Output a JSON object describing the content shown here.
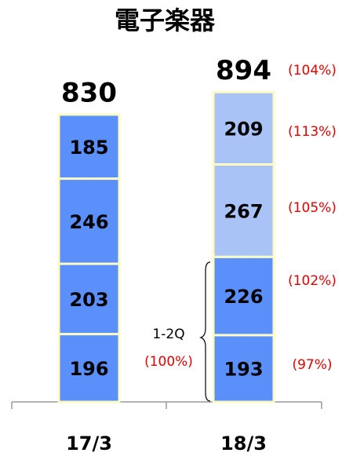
{
  "chart_data": {
    "type": "stacked_bar",
    "title": "電子楽器",
    "categories": [
      "17/3",
      "18/3"
    ],
    "series": [
      {
        "values": [
          196,
          193
        ],
        "colors": [
          "#5b8ff9",
          "#5b8ff9"
        ]
      },
      {
        "values": [
          203,
          226
        ],
        "colors": [
          "#5b8ff9",
          "#5b8ff9"
        ]
      },
      {
        "values": [
          246,
          267
        ],
        "colors": [
          "#5b8ff9",
          "#a9c3f7"
        ]
      },
      {
        "values": [
          185,
          209
        ],
        "colors": [
          "#5b8ff9",
          "#a9c3f7"
        ]
      }
    ],
    "totals": [
      830,
      894
    ],
    "annotations": [
      "(104%)",
      "(113%)",
      "(105%)",
      "(102%)",
      "(97%)",
      "1-2Q",
      "(100%)"
    ]
  }
}
